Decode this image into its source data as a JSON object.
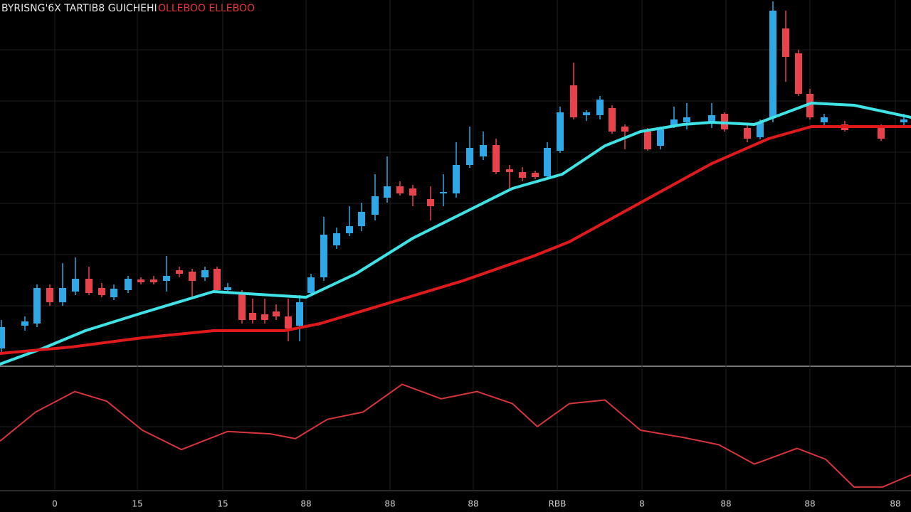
{
  "chart_data": [
    {
      "type": "candlestick",
      "title": "BYRISNG'6X TARTIB8  GUICHEHI",
      "subtitle": "OLLEBOO  ELLEBOO",
      "up_color": "#2ea8e6",
      "down_color": "#e8434b",
      "xlim": [
        0,
        1280
      ],
      "ylim": [
        0,
        520
      ],
      "x": [
        2,
        35,
        52,
        70,
        88,
        106,
        125,
        143,
        160,
        180,
        198,
        216,
        234,
        252,
        270,
        288,
        305,
        320,
        340,
        355,
        372,
        388,
        405,
        421,
        437,
        455,
        473,
        491,
        508,
        527,
        544,
        562,
        580,
        605,
        623,
        641,
        660,
        679,
        697,
        716,
        734,
        752,
        769,
        787,
        806,
        824,
        843,
        860,
        878,
        910,
        928,
        947,
        965,
        1000,
        1018,
        1050,
        1068,
        1086,
        1104,
        1122,
        1138,
        1158,
        1187,
        1238,
        1270
      ],
      "open": [
        30,
        62,
        65,
        115,
        95,
        110,
        128,
        115,
        102,
        112,
        127,
        127,
        125,
        140,
        138,
        130,
        142,
        112,
        108,
        80,
        78,
        82,
        75,
        62,
        108,
        130,
        175,
        192,
        202,
        218,
        242,
        258,
        255,
        240,
        248,
        248,
        288,
        300,
        316,
        282,
        278,
        277,
        272,
        308,
        400,
        358,
        358,
        368,
        342,
        335,
        315,
        342,
        348,
        348,
        360,
        340,
        327,
        355,
        480,
        445,
        388,
        348,
        345,
        340,
        348
      ],
      "close": [
        60,
        68,
        115,
        95,
        115,
        128,
        108,
        105,
        114,
        128,
        123,
        123,
        132,
        135,
        125,
        140,
        112,
        116,
        70,
        70,
        70,
        75,
        58,
        95,
        130,
        190,
        192,
        202,
        222,
        244,
        258,
        248,
        245,
        230,
        250,
        288,
        312,
        316,
        278,
        278,
        270,
        271,
        312,
        362,
        355,
        362,
        380,
        335,
        335,
        310,
        338,
        352,
        355,
        358,
        338,
        325,
        348,
        505,
        440,
        388,
        355,
        355,
        337,
        325,
        352
      ],
      "high": [
        70,
        75,
        120,
        120,
        150,
        158,
        145,
        122,
        120,
        132,
        130,
        132,
        160,
        145,
        142,
        145,
        145,
        122,
        112,
        100,
        100,
        92,
        100,
        105,
        135,
        215,
        200,
        230,
        235,
        275,
        300,
        265,
        260,
        258,
        275,
        320,
        342,
        335,
        325,
        288,
        285,
        280,
        320,
        370,
        432,
        365,
        385,
        372,
        345,
        340,
        342,
        370,
        375,
        375,
        362,
        345,
        352,
        518,
        505,
        450,
        395,
        360,
        350,
        345,
        360
      ],
      "low": [
        25,
        55,
        60,
        90,
        90,
        105,
        105,
        102,
        98,
        108,
        120,
        120,
        110,
        130,
        100,
        125,
        110,
        108,
        65,
        65,
        65,
        70,
        40,
        40,
        105,
        125,
        170,
        188,
        195,
        210,
        235,
        245,
        230,
        210,
        230,
        242,
        284,
        295,
        275,
        255,
        265,
        268,
        270,
        305,
        352,
        350,
        352,
        332,
        310,
        308,
        310,
        340,
        338,
        340,
        335,
        320,
        324,
        348,
        405,
        385,
        352,
        342,
        335,
        322,
        342
      ],
      "series": [
        {
          "color": "#3fe3e6",
          "x": [
            0,
            60,
            120,
            200,
            300,
            380,
            430,
            500,
            580,
            650,
            720,
            790,
            850,
            900,
            960,
            1000,
            1060,
            1100,
            1140,
            1200,
            1280
          ],
          "values": [
            8,
            30,
            55,
            80,
            110,
            105,
            102,
            135,
            185,
            220,
            255,
            275,
            315,
            335,
            345,
            348,
            345,
            360,
            375,
            372,
            355
          ]
        },
        {
          "color": "#e01a1a",
          "x": [
            0,
            100,
            200,
            300,
            400,
            450,
            550,
            650,
            750,
            800,
            900,
            1000,
            1080,
            1140,
            1200,
            1280
          ],
          "values": [
            23,
            32,
            45,
            55,
            55,
            65,
            95,
            125,
            160,
            180,
            235,
            290,
            325,
            342,
            342,
            342
          ]
        }
      ],
      "xticks": [
        {
          "value": 77,
          "label": "0"
        },
        {
          "value": 193,
          "label": "15"
        },
        {
          "value": 313,
          "label": "15"
        },
        {
          "value": 430,
          "label": "88"
        },
        {
          "value": 548,
          "label": "88"
        },
        {
          "value": 665,
          "label": "88"
        },
        {
          "value": 783,
          "label": "RBB"
        },
        {
          "value": 902,
          "label": "8"
        },
        {
          "value": 1020,
          "label": "88"
        },
        {
          "value": 1138,
          "label": "88"
        },
        {
          "value": 1258,
          "label": "88"
        }
      ],
      "grid": true
    },
    {
      "type": "line",
      "color": "#d8343c",
      "xlim": [
        0,
        1280
      ],
      "ylim": [
        0,
        100
      ],
      "x": [
        0,
        50,
        105,
        150,
        200,
        255,
        320,
        380,
        415,
        460,
        510,
        565,
        620,
        670,
        720,
        755,
        800,
        850,
        900,
        960,
        1010,
        1060,
        1120,
        1160,
        1200,
        1240,
        1280
      ],
      "values": [
        41,
        65,
        82,
        74,
        50,
        34,
        49,
        47,
        43,
        59,
        65,
        88,
        76,
        82,
        72,
        53,
        72,
        75,
        50,
        44,
        38,
        22,
        35,
        26,
        3,
        3,
        13
      ]
    }
  ]
}
